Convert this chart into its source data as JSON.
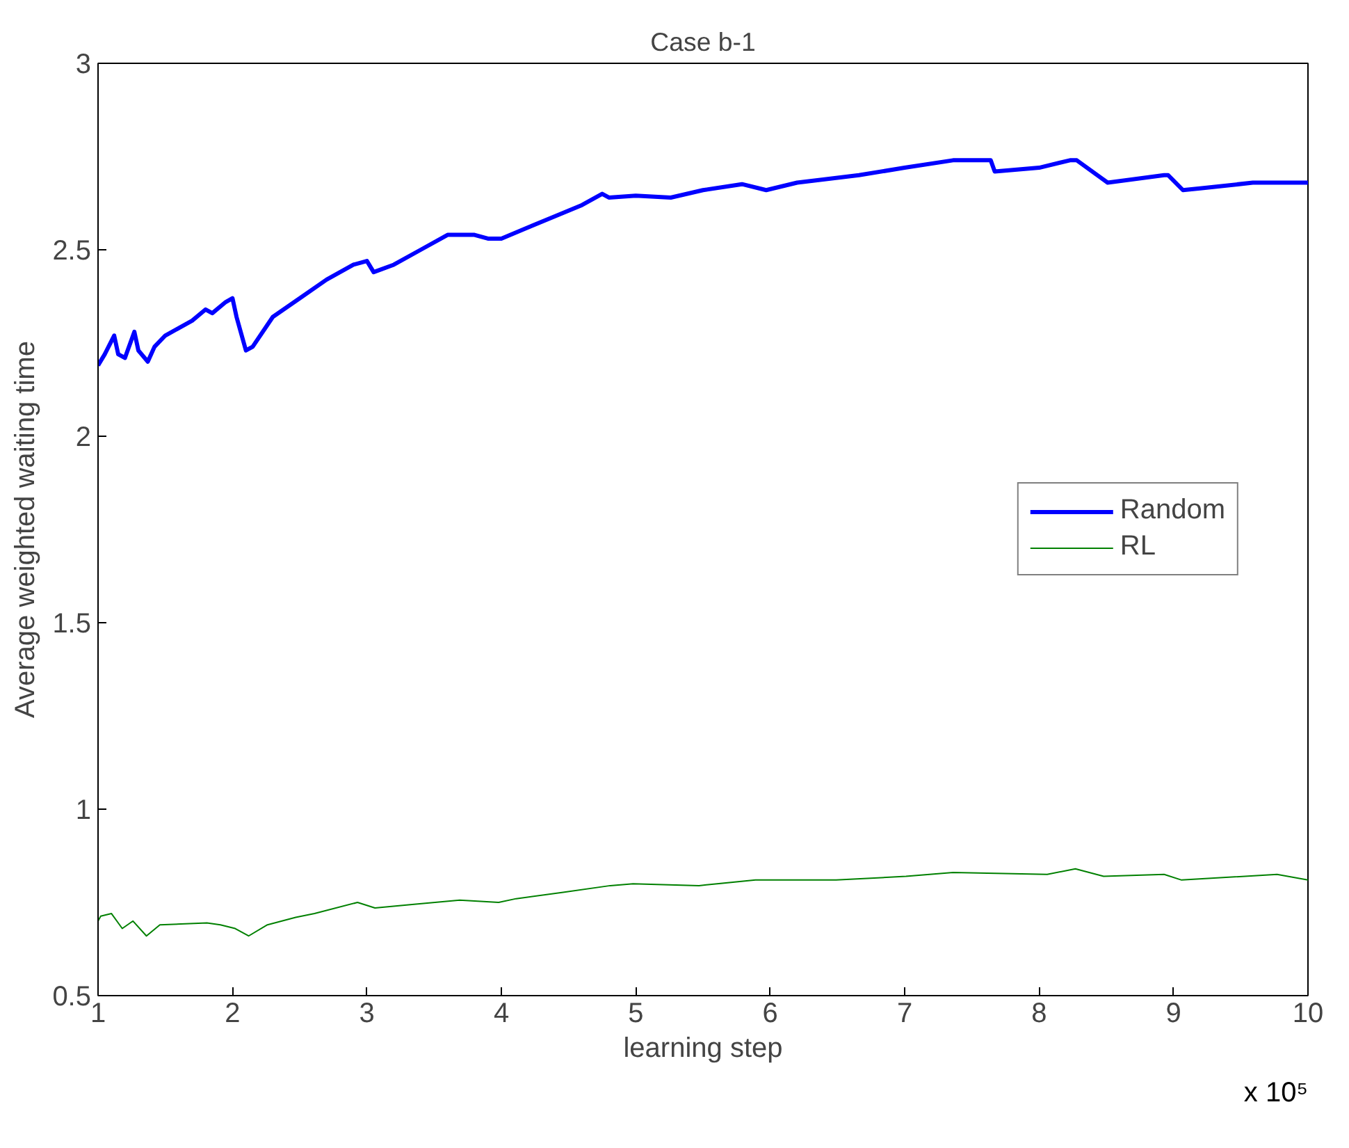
{
  "chart_data": {
    "type": "line",
    "title": "Case b-1",
    "xlabel": "learning step",
    "ylabel": "Average weighted waiting time",
    "annotations": [
      "x 10⁵"
    ],
    "xlim": [
      1,
      10
    ],
    "xticks": [
      1,
      2,
      3,
      4,
      5,
      6,
      7,
      8,
      9,
      10
    ],
    "ylim": [
      0.5,
      3
    ],
    "yticks": [
      0.5,
      1,
      1.5,
      2,
      2.5,
      3
    ],
    "grid": false,
    "legend": "right",
    "series": [
      {
        "name": "Random",
        "color": "#0000ff",
        "x": [
          1.0,
          1.05,
          1.12,
          1.15,
          1.2,
          1.27,
          1.3,
          1.37,
          1.42,
          1.5,
          1.6,
          1.7,
          1.8,
          1.85,
          1.95,
          2.0,
          2.03,
          2.1,
          2.15,
          2.3,
          2.5,
          2.7,
          2.9,
          3.0,
          3.05,
          3.2,
          3.4,
          3.6,
          3.8,
          3.9,
          4.0,
          4.2,
          4.4,
          4.6,
          4.75,
          4.8,
          5.0,
          5.26,
          5.5,
          5.79,
          5.97,
          6.2,
          6.66,
          7.0,
          7.36,
          7.64,
          7.67,
          8.0,
          8.23,
          8.28,
          8.51,
          8.93,
          8.96,
          9.07,
          9.21,
          9.59,
          10.0
        ],
        "values": [
          2.19,
          2.22,
          2.27,
          2.22,
          2.21,
          2.28,
          2.23,
          2.2,
          2.24,
          2.27,
          2.29,
          2.31,
          2.34,
          2.33,
          2.36,
          2.37,
          2.32,
          2.23,
          2.24,
          2.32,
          2.37,
          2.42,
          2.46,
          2.47,
          2.44,
          2.46,
          2.5,
          2.54,
          2.54,
          2.53,
          2.53,
          2.56,
          2.59,
          2.62,
          2.65,
          2.64,
          2.645,
          2.64,
          2.66,
          2.676,
          2.66,
          2.68,
          2.7,
          2.72,
          2.74,
          2.74,
          2.71,
          2.72,
          2.74,
          2.74,
          2.68,
          2.7,
          2.7,
          2.66,
          2.665,
          2.68,
          2.68
        ]
      },
      {
        "name": "RL",
        "color": "#008000",
        "x": [
          1.0,
          1.02,
          1.1,
          1.18,
          1.26,
          1.36,
          1.46,
          1.81,
          1.91,
          2.02,
          2.12,
          2.26,
          2.47,
          2.61,
          2.93,
          3.06,
          3.35,
          3.69,
          3.98,
          4.11,
          4.46,
          4.81,
          4.98,
          5.47,
          5.89,
          6.49,
          7.01,
          7.36,
          8.06,
          8.27,
          8.48,
          8.93,
          9.06,
          9.77,
          10.0
        ],
        "values": [
          0.7,
          0.713,
          0.72,
          0.68,
          0.7,
          0.66,
          0.69,
          0.695,
          0.69,
          0.68,
          0.66,
          0.69,
          0.71,
          0.72,
          0.75,
          0.735,
          0.745,
          0.756,
          0.75,
          0.76,
          0.777,
          0.795,
          0.8,
          0.795,
          0.81,
          0.81,
          0.82,
          0.83,
          0.825,
          0.84,
          0.82,
          0.825,
          0.81,
          0.825,
          0.81
        ]
      }
    ]
  }
}
